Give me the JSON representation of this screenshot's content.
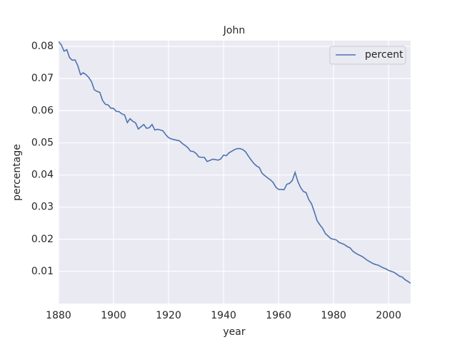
{
  "chart_data": {
    "type": "line",
    "title": "John",
    "x_label": "year",
    "y_label": "percentage",
    "x": [
      1880,
      1881,
      1882,
      1883,
      1884,
      1885,
      1886,
      1887,
      1888,
      1889,
      1890,
      1891,
      1892,
      1893,
      1894,
      1895,
      1896,
      1897,
      1898,
      1899,
      1900,
      1901,
      1902,
      1903,
      1904,
      1905,
      1906,
      1907,
      1908,
      1909,
      1910,
      1911,
      1912,
      1913,
      1914,
      1915,
      1916,
      1917,
      1918,
      1919,
      1920,
      1921,
      1922,
      1923,
      1924,
      1925,
      1926,
      1927,
      1928,
      1929,
      1930,
      1931,
      1932,
      1933,
      1934,
      1935,
      1936,
      1937,
      1938,
      1939,
      1940,
      1941,
      1942,
      1943,
      1944,
      1945,
      1946,
      1947,
      1948,
      1949,
      1950,
      1951,
      1952,
      1953,
      1954,
      1955,
      1956,
      1957,
      1958,
      1959,
      1960,
      1961,
      1962,
      1963,
      1964,
      1965,
      1966,
      1967,
      1968,
      1969,
      1970,
      1971,
      1972,
      1973,
      1974,
      1975,
      1976,
      1977,
      1978,
      1979,
      1980,
      1981,
      1982,
      1983,
      1984,
      1985,
      1986,
      1987,
      1988,
      1989,
      1990,
      1991,
      1992,
      1993,
      1994,
      1995,
      1996,
      1997,
      1998,
      1999,
      2000,
      2001,
      2002,
      2003,
      2004,
      2005,
      2006,
      2007,
      2008
    ],
    "series": [
      {
        "name": "percent",
        "color": "#4c72b0",
        "values": [
          0.0815,
          0.0805,
          0.0785,
          0.079,
          0.0765,
          0.0757,
          0.0758,
          0.074,
          0.0712,
          0.0718,
          0.0712,
          0.0703,
          0.069,
          0.0665,
          0.066,
          0.0657,
          0.0632,
          0.062,
          0.0618,
          0.0608,
          0.0607,
          0.0598,
          0.0597,
          0.059,
          0.0587,
          0.0563,
          0.0575,
          0.0567,
          0.0562,
          0.0543,
          0.055,
          0.0557,
          0.0545,
          0.0547,
          0.0557,
          0.054,
          0.0542,
          0.054,
          0.0537,
          0.0525,
          0.0516,
          0.0512,
          0.051,
          0.0508,
          0.0506,
          0.0498,
          0.0492,
          0.0485,
          0.0474,
          0.0473,
          0.0467,
          0.0456,
          0.0455,
          0.0455,
          0.0442,
          0.0445,
          0.0449,
          0.0448,
          0.0446,
          0.045,
          0.0462,
          0.046,
          0.0469,
          0.0474,
          0.0479,
          0.0482,
          0.0482,
          0.0479,
          0.0472,
          0.0459,
          0.0447,
          0.0436,
          0.0428,
          0.0423,
          0.0405,
          0.0398,
          0.0391,
          0.0385,
          0.0377,
          0.0362,
          0.0355,
          0.0355,
          0.0354,
          0.0371,
          0.0374,
          0.0383,
          0.0408,
          0.038,
          0.0361,
          0.0349,
          0.0345,
          0.0323,
          0.031,
          0.0285,
          0.0258,
          0.0245,
          0.0234,
          0.0218,
          0.021,
          0.0202,
          0.02,
          0.0198,
          0.019,
          0.0187,
          0.0183,
          0.0177,
          0.0173,
          0.0163,
          0.0157,
          0.0152,
          0.0148,
          0.0143,
          0.0136,
          0.0131,
          0.0126,
          0.0122,
          0.012,
          0.0116,
          0.0111,
          0.0108,
          0.0103,
          0.01,
          0.0097,
          0.0091,
          0.0085,
          0.0082,
          0.0074,
          0.0069,
          0.0063
        ]
      }
    ],
    "xlim": [
      1880,
      2008
    ],
    "ylim": [
      0,
      0.0818
    ],
    "xticks": [
      1880,
      1900,
      1920,
      1940,
      1960,
      1980,
      2000
    ],
    "yticks": [
      0.01,
      0.02,
      0.03,
      0.04,
      0.05,
      0.06,
      0.07,
      0.08
    ],
    "grid": true,
    "legend": "upper right"
  }
}
